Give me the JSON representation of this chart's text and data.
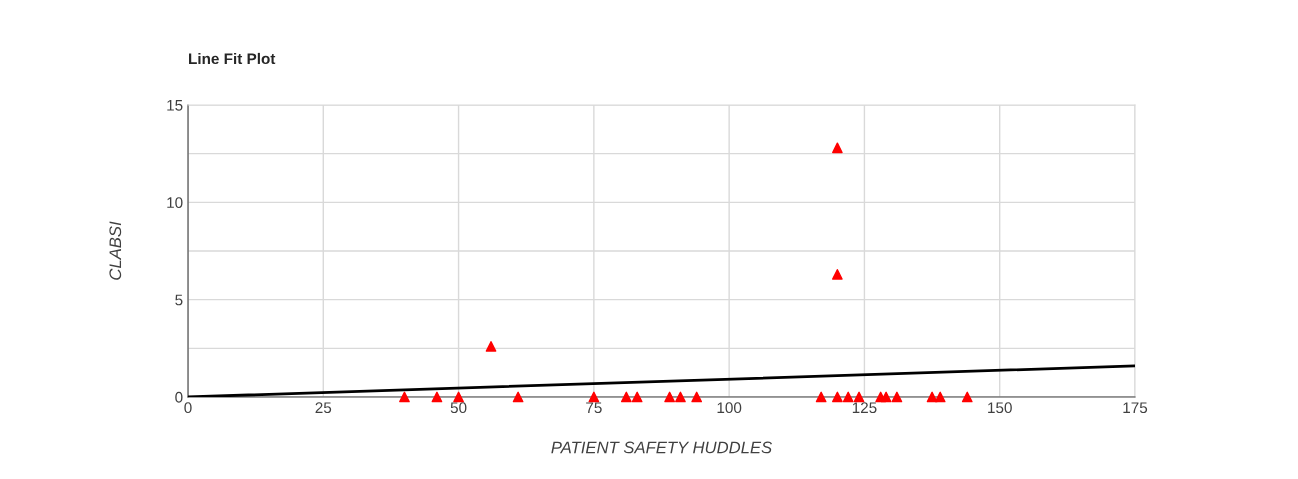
{
  "chart_data": {
    "type": "scatter",
    "title": "Line Fit Plot",
    "xlabel": "PATIENT SAFETY HUDDLES",
    "ylabel": "CLABSI",
    "xlim": [
      0,
      175
    ],
    "xticks": [
      0,
      25,
      50,
      75,
      100,
      125,
      150,
      175
    ],
    "ylim": [
      0,
      15
    ],
    "yticks": [
      0,
      {
        "value": 2.5,
        "label": null
      },
      5,
      {
        "value": 7.5,
        "label": null
      },
      10,
      {
        "value": 12.5,
        "label": null
      },
      15
    ],
    "grid": true,
    "series": [
      {
        "marker": "triangle",
        "color": "#ff0000",
        "x": [
          40,
          46,
          50,
          56,
          61,
          75,
          81,
          83,
          89,
          91,
          94,
          117,
          120,
          120,
          120,
          122,
          124,
          128,
          129,
          131,
          137.5,
          139,
          144
        ],
        "values": [
          0,
          0,
          0,
          2.6,
          0,
          0,
          0,
          0,
          0,
          0,
          0,
          0,
          0,
          12.8,
          6.3,
          0,
          0,
          0,
          0,
          0,
          0,
          0,
          0
        ]
      },
      {
        "type": "line",
        "marker": "none",
        "color": "#000000",
        "x": [
          0,
          175
        ],
        "values": [
          0,
          1.6
        ]
      }
    ]
  }
}
